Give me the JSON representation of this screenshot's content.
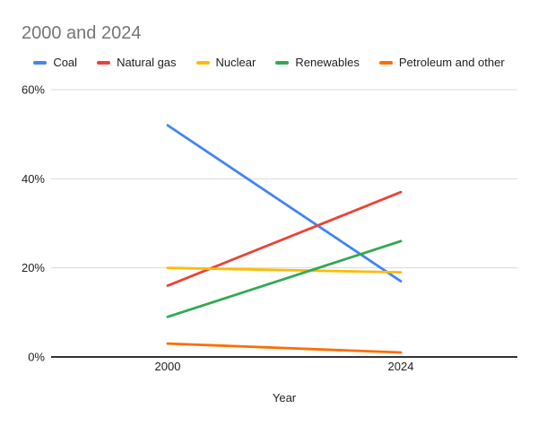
{
  "chart_data": {
    "type": "line",
    "title": "2000 and 2024",
    "categories": [
      "2000",
      "2024"
    ],
    "series": [
      {
        "name": "Coal",
        "color": "#4285f4",
        "values": [
          52,
          17
        ]
      },
      {
        "name": "Natural gas",
        "color": "#ea4335",
        "values": [
          16,
          37
        ]
      },
      {
        "name": "Nuclear",
        "color": "#fbbc04",
        "values": [
          20,
          19
        ]
      },
      {
        "name": "Renewables",
        "color": "#34a853",
        "values": [
          9,
          26
        ]
      },
      {
        "name": "Petroleum and other",
        "color": "#ff6d01",
        "values": [
          3,
          1
        ]
      }
    ],
    "xlabel": "Year",
    "ylabel": "",
    "ylim": [
      0,
      60
    ],
    "yticks": [
      {
        "value": 0,
        "label": "0%"
      },
      {
        "value": 20,
        "label": "20%"
      },
      {
        "value": 40,
        "label": "40%"
      },
      {
        "value": 60,
        "label": "60%"
      }
    ],
    "grid": true,
    "legend_position": "top"
  },
  "colors": {
    "title_text": "#757575",
    "axis_text": "#202124",
    "gridline": "#d9d9d9",
    "axis_line": "#333333",
    "background": "#ffffff"
  }
}
